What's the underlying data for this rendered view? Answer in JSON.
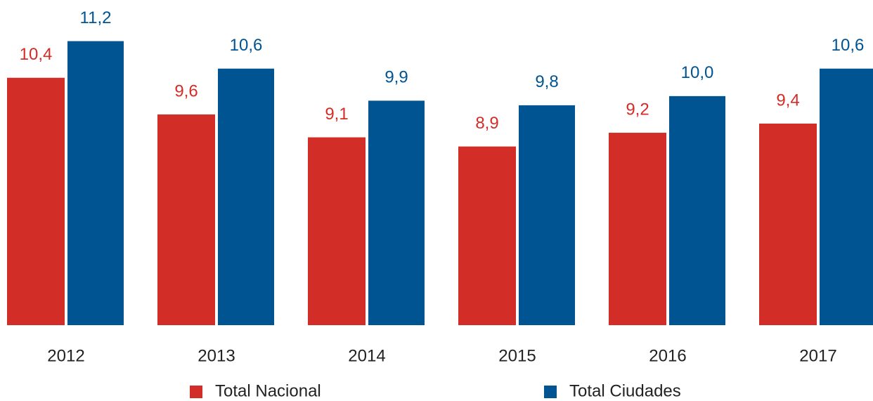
{
  "chart_data": {
    "type": "bar",
    "categories": [
      "2012",
      "2013",
      "2014",
      "2015",
      "2016",
      "2017"
    ],
    "series": [
      {
        "name": "Total Nacional",
        "color": "#d22e27",
        "values": [
          10.4,
          9.6,
          9.1,
          8.9,
          9.2,
          9.4
        ],
        "value_labels": [
          "10,4",
          "9,6",
          "9,1",
          "8,9",
          "9,2",
          "9,4"
        ]
      },
      {
        "name": "Total Ciudades",
        "color": "#005492",
        "values": [
          11.2,
          10.6,
          9.9,
          9.8,
          10.0,
          10.6
        ],
        "value_labels": [
          "11,2",
          "10,6",
          "9,9",
          "9,8",
          "10,0",
          "10,6"
        ]
      }
    ],
    "ylim": [
      5,
      11.5
    ]
  }
}
